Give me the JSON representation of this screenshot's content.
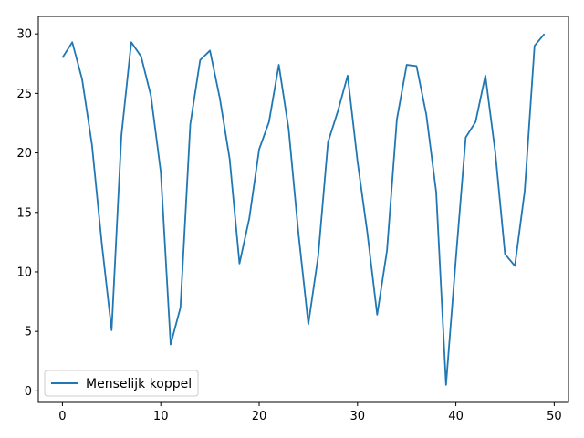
{
  "chart_data": {
    "type": "line",
    "title": "",
    "xlabel": "",
    "ylabel": "",
    "xlim": [
      -2.45,
      51.45
    ],
    "ylim": [
      -0.97,
      31.47
    ],
    "xticks": [
      0,
      10,
      20,
      30,
      40,
      50
    ],
    "yticks": [
      0,
      5,
      10,
      15,
      20,
      25,
      30
    ],
    "grid": false,
    "legend_position": "lower-left",
    "series": [
      {
        "name": "Menselijk koppel",
        "color": "#1f77b4",
        "x": [
          0,
          1,
          2,
          3,
          4,
          5,
          6,
          7,
          8,
          9,
          10,
          11,
          12,
          13,
          14,
          15,
          16,
          17,
          18,
          19,
          20,
          21,
          22,
          23,
          24,
          25,
          26,
          27,
          28,
          29,
          30,
          31,
          32,
          33,
          34,
          35,
          36,
          37,
          38,
          39,
          40,
          41,
          42,
          43,
          44,
          45,
          46,
          47,
          48,
          49
        ],
        "y": [
          28.0,
          29.3,
          26.2,
          20.7,
          12.4,
          5.1,
          21.5,
          29.3,
          28.1,
          24.8,
          18.4,
          3.9,
          7.0,
          22.4,
          27.8,
          28.6,
          24.6,
          19.5,
          10.7,
          14.5,
          20.3,
          22.6,
          27.4,
          22.0,
          13.2,
          5.6,
          11.3,
          20.9,
          23.5,
          26.5,
          19.3,
          13.3,
          6.4,
          11.8,
          22.8,
          27.4,
          27.3,
          23.2,
          16.7,
          0.5,
          11.1,
          21.3,
          22.6,
          26.5,
          20.1,
          11.5,
          10.5,
          16.8,
          29.0,
          30.0
        ]
      }
    ]
  }
}
